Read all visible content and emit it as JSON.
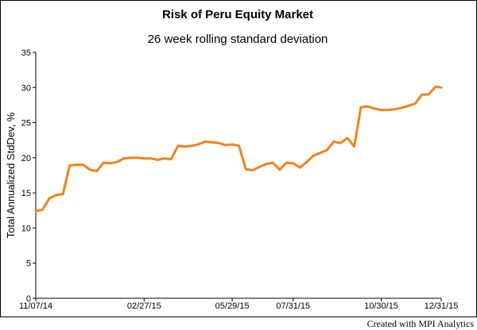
{
  "chart_data": {
    "type": "line",
    "title": "Risk of Peru Equity Market",
    "subtitle": "26 week rolling standard deviation",
    "ylabel": "Total Annualized StdDev, %",
    "xlabel": "",
    "ylim": [
      0,
      35
    ],
    "yticks": [
      0,
      5,
      10,
      15,
      20,
      25,
      30,
      35
    ],
    "xticks": [
      "11/07/14",
      "02/27/15",
      "05/29/15",
      "07/31/15",
      "10/30/15",
      "12/31/15"
    ],
    "grid": false,
    "line_color": "#F0821E",
    "series": [
      {
        "x": [
          "11/07/14",
          "11/14/14",
          "11/21/14",
          "11/28/14",
          "12/05/14",
          "12/12/14",
          "12/19/14",
          "12/26/14",
          "01/02/15",
          "01/09/15",
          "01/16/15",
          "01/23/15",
          "01/30/15",
          "02/06/15",
          "02/13/15",
          "02/20/15",
          "02/27/15",
          "03/06/15",
          "03/13/15",
          "03/20/15",
          "03/27/15",
          "04/03/15",
          "04/10/15",
          "04/17/15",
          "04/24/15",
          "05/01/15",
          "05/08/15",
          "05/15/15",
          "05/22/15",
          "05/29/15",
          "06/05/15",
          "06/12/15",
          "06/19/15",
          "06/26/15",
          "07/03/15",
          "07/10/15",
          "07/17/15",
          "07/24/15",
          "07/31/15",
          "08/07/15",
          "08/14/15",
          "08/21/15",
          "08/28/15",
          "09/04/15",
          "09/11/15",
          "09/18/15",
          "09/25/15",
          "10/02/15",
          "10/09/15",
          "10/16/15",
          "10/23/15",
          "10/30/15",
          "11/06/15",
          "11/13/15",
          "11/20/15",
          "11/27/15",
          "12/04/15",
          "12/11/15",
          "12/18/15",
          "12/25/15",
          "12/31/15"
        ],
        "values": [
          12.4,
          12.6,
          14.2,
          14.7,
          14.8,
          18.9,
          19.0,
          19.0,
          18.3,
          18.1,
          19.3,
          19.2,
          19.4,
          19.9,
          20.0,
          20.0,
          19.9,
          19.9,
          19.7,
          19.9,
          19.8,
          21.7,
          21.6,
          21.7,
          21.9,
          22.3,
          22.2,
          22.1,
          21.8,
          21.9,
          21.7,
          18.4,
          18.2,
          18.7,
          19.1,
          19.3,
          18.3,
          19.3,
          19.2,
          18.6,
          19.4,
          20.3,
          20.7,
          21.1,
          22.3,
          22.1,
          22.8,
          21.6,
          27.2,
          27.3,
          27.0,
          26.8,
          26.8,
          26.9,
          27.1,
          27.4,
          27.7,
          29.0,
          29.0,
          30.1,
          30.0
        ]
      }
    ]
  },
  "footer": {
    "credit": "Created with MPI Analytics"
  }
}
